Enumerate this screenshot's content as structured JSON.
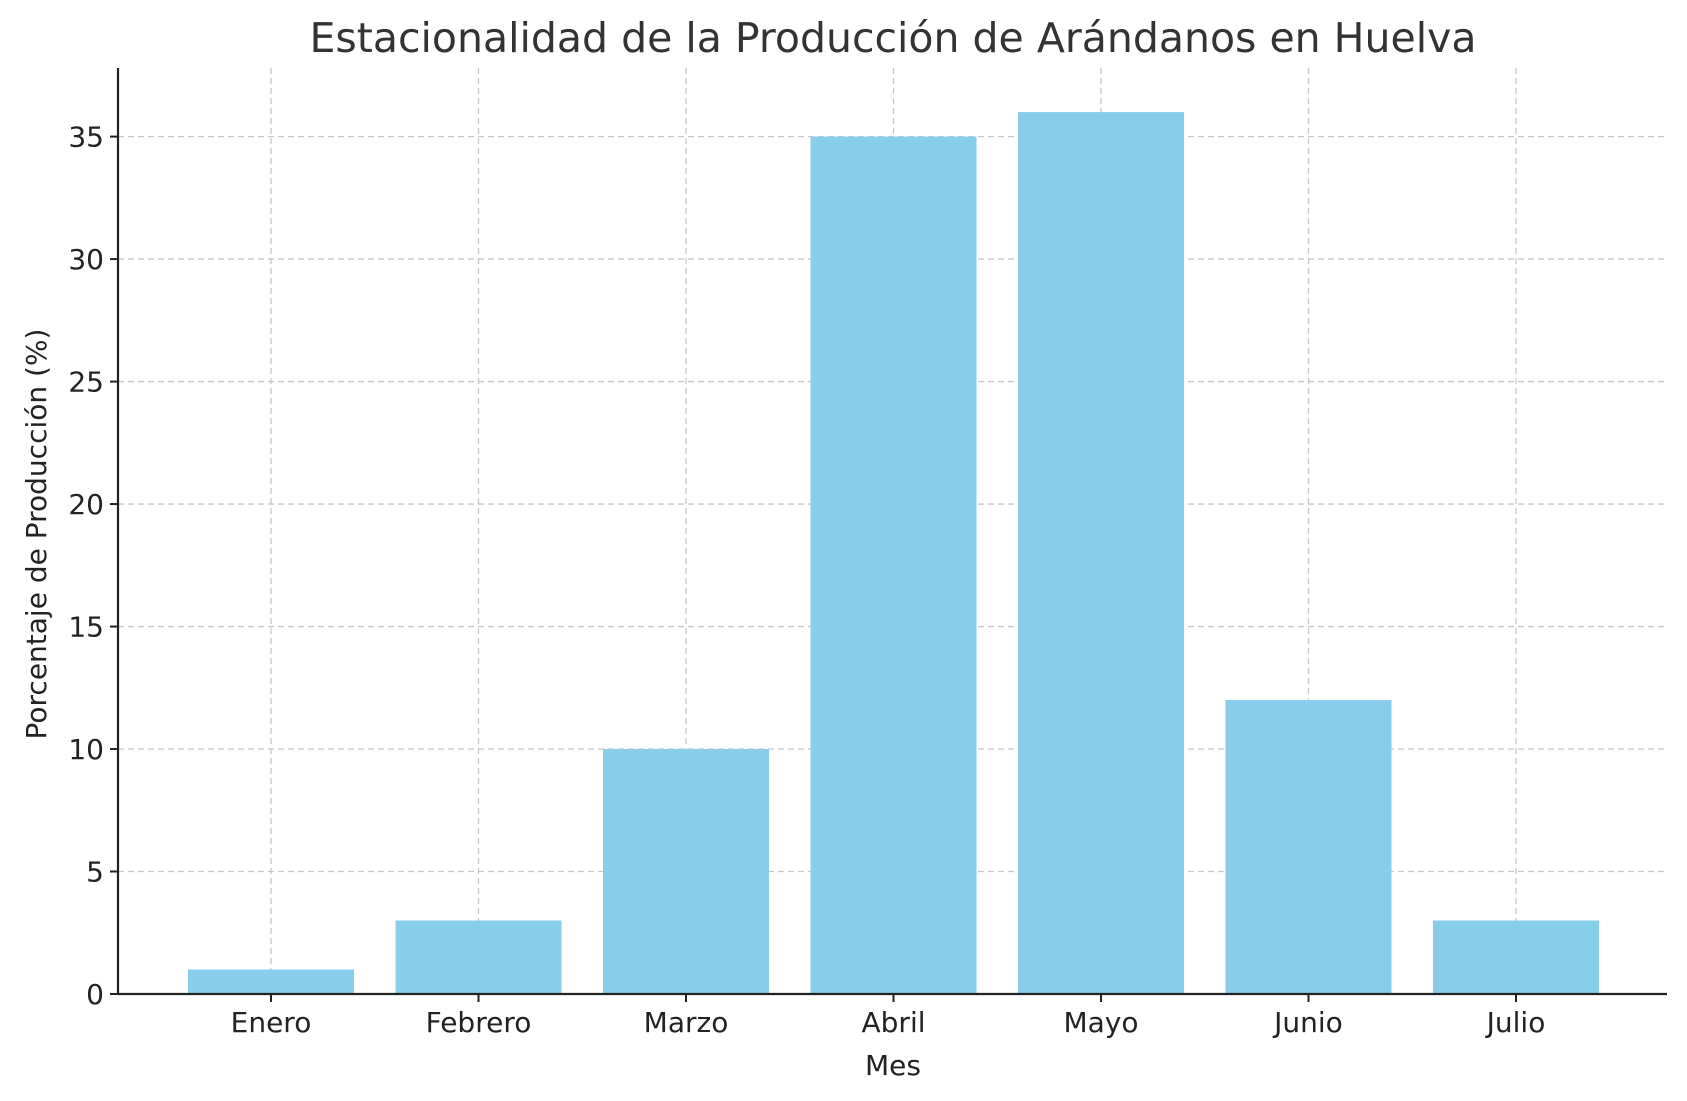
{
  "chart_data": {
    "type": "bar",
    "title": "Estacionalidad de la Producción de Arándanos en Huelva",
    "xlabel": "Mes",
    "ylabel": "Porcentaje de Producción (%)",
    "categories": [
      "Enero",
      "Febrero",
      "Marzo",
      "Abril",
      "Mayo",
      "Junio",
      "Julio"
    ],
    "values": [
      1,
      3,
      10,
      35,
      36,
      12,
      3
    ],
    "ylim": [
      0,
      37.8
    ],
    "yticks": [
      0,
      5,
      10,
      15,
      20,
      25,
      30,
      35
    ],
    "grid": true,
    "bar_color": "#87ceeb"
  }
}
